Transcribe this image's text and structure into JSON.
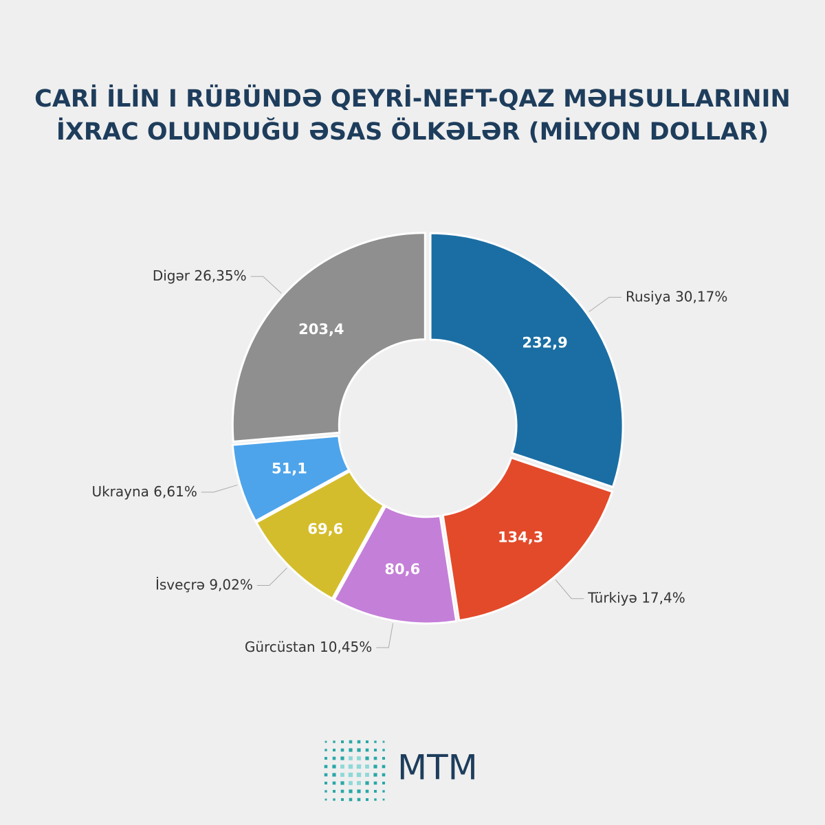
{
  "chart_data": {
    "type": "donut",
    "title": [
      "CARİ İLİN I RÜBÜNDƏ QEYRİ-NEFT-QAZ MƏHSULLARININ",
      "İXRAC OLUNDUĞU ƏSAS ÖLKƏLƏR (MİLYON DOLLAR)"
    ],
    "categories": [
      "Rusiya",
      "Türkiyə",
      "Gürcüstan",
      "İsveçrə",
      "Ukrayna",
      "Digər"
    ],
    "values": [
      232.9,
      134.3,
      80.6,
      69.6,
      51.1,
      203.4
    ],
    "value_labels": [
      "232,9",
      "134,3",
      "80,6",
      "69,6",
      "51,1",
      "203,4"
    ],
    "percent_labels": [
      "30,17%",
      "17,4%",
      "10,45%",
      "9,02%",
      "6,61%",
      "26,35%"
    ],
    "colors": [
      "#1b6ea3",
      "#e34a2a",
      "#c47fd8",
      "#d4bd2c",
      "#4ea4ea",
      "#8f8f8f"
    ]
  },
  "brand": "MTM"
}
